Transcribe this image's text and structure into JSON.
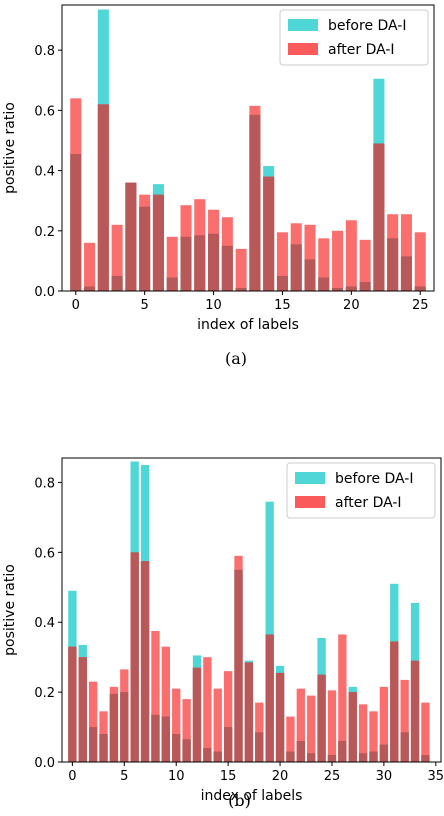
{
  "colors": {
    "before": "#4fd6d6",
    "after": "#fb5a5a",
    "overlap": "#b95858"
  },
  "chart_data": [
    {
      "type": "bar",
      "caption": "(a)",
      "xlabel": "index of labels",
      "ylabel": "positive ratio",
      "xlim": [
        -1,
        26
      ],
      "ylim": [
        0,
        0.95
      ],
      "xticks": [
        0,
        5,
        10,
        15,
        20,
        25
      ],
      "yticks": [
        0.0,
        0.2,
        0.4,
        0.6,
        0.8
      ],
      "legend": {
        "position": "top-right",
        "entries": [
          "before DA-I",
          "after DA-I"
        ]
      },
      "categories": [
        0,
        1,
        2,
        3,
        4,
        5,
        6,
        7,
        8,
        9,
        10,
        11,
        12,
        13,
        14,
        15,
        16,
        17,
        18,
        19,
        20,
        21,
        22,
        23,
        24,
        25
      ],
      "series": [
        {
          "name": "before DA-I",
          "values": [
            0.455,
            0.015,
            0.935,
            0.05,
            0.36,
            0.28,
            0.355,
            0.045,
            0.18,
            0.185,
            0.19,
            0.15,
            0.01,
            0.585,
            0.415,
            0.05,
            0.155,
            0.105,
            0.045,
            0.01,
            0.015,
            0.03,
            0.705,
            0.175,
            0.115,
            0.015
          ]
        },
        {
          "name": "after DA-I",
          "values": [
            0.64,
            0.16,
            0.62,
            0.22,
            0.36,
            0.32,
            0.32,
            0.18,
            0.285,
            0.305,
            0.27,
            0.245,
            0.14,
            0.615,
            0.38,
            0.195,
            0.225,
            0.22,
            0.175,
            0.2,
            0.235,
            0.17,
            0.49,
            0.255,
            0.255,
            0.195
          ]
        }
      ]
    },
    {
      "type": "bar",
      "caption": "(b)",
      "xlabel": "index of labels",
      "ylabel": "positive ratio",
      "xlim": [
        -1,
        35.5
      ],
      "ylim": [
        0,
        0.87
      ],
      "xticks": [
        0,
        5,
        10,
        15,
        20,
        25,
        30,
        35
      ],
      "yticks": [
        0.0,
        0.2,
        0.4,
        0.6,
        0.8
      ],
      "legend": {
        "position": "top-right",
        "entries": [
          "before DA-I",
          "after DA-I"
        ]
      },
      "categories": [
        0,
        1,
        2,
        3,
        4,
        5,
        6,
        7,
        8,
        9,
        10,
        11,
        12,
        13,
        14,
        15,
        16,
        17,
        18,
        19,
        20,
        21,
        22,
        23,
        24,
        25,
        26,
        27,
        28,
        29,
        30,
        31,
        32,
        33,
        34
      ],
      "series": [
        {
          "name": "before DA-I",
          "values": [
            0.49,
            0.335,
            0.1,
            0.08,
            0.195,
            0.2,
            0.86,
            0.85,
            0.135,
            0.13,
            0.08,
            0.065,
            0.305,
            0.04,
            0.03,
            0.1,
            0.55,
            0.29,
            0.085,
            0.745,
            0.275,
            0.03,
            0.06,
            0.025,
            0.355,
            0.02,
            0.06,
            0.215,
            0.025,
            0.03,
            0.05,
            0.51,
            0.085,
            0.455,
            0.02
          ]
        },
        {
          "name": "after DA-I",
          "values": [
            0.33,
            0.3,
            0.23,
            0.145,
            0.215,
            0.265,
            0.6,
            0.575,
            0.375,
            0.33,
            0.21,
            0.18,
            0.27,
            0.3,
            0.21,
            0.26,
            0.59,
            0.285,
            0.17,
            0.365,
            0.255,
            0.13,
            0.21,
            0.19,
            0.25,
            0.205,
            0.365,
            0.2,
            0.165,
            0.145,
            0.215,
            0.345,
            0.235,
            0.29,
            0.17
          ]
        }
      ]
    }
  ]
}
